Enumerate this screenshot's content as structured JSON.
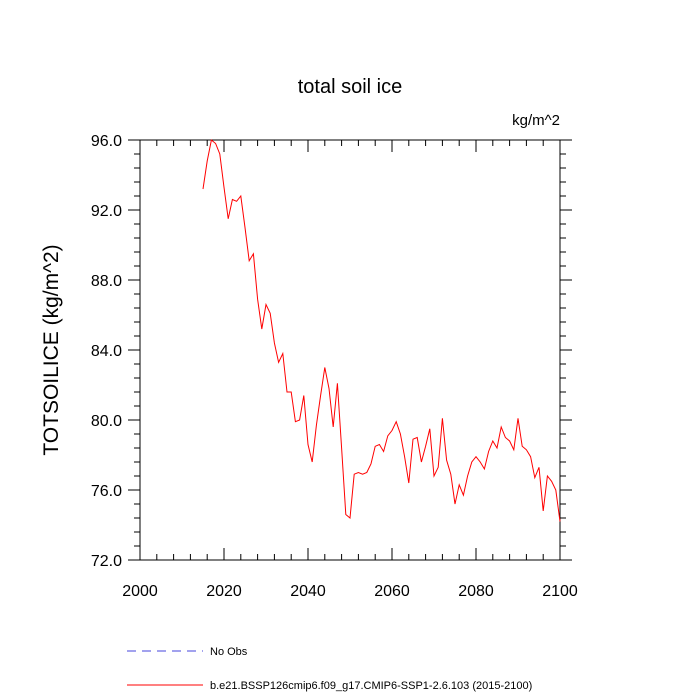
{
  "chart_data": {
    "type": "line",
    "title": "total soil ice",
    "units_label": "kg/m^2",
    "ylabel": "TOTSOILICE  (kg/m^2)",
    "xlabel": "",
    "xlim": [
      2000,
      2100
    ],
    "ylim": [
      72,
      96
    ],
    "x_ticks": [
      2000,
      2020,
      2040,
      2060,
      2080,
      2100
    ],
    "x_tick_labels": [
      "2000",
      "2020",
      "2040",
      "2060",
      "2080",
      "2100"
    ],
    "y_ticks": [
      72,
      76,
      80,
      84,
      88,
      92,
      96
    ],
    "y_tick_labels": [
      "72.0",
      "76.0",
      "80.0",
      "84.0",
      "88.0",
      "92.0",
      "96.0"
    ],
    "series": [
      {
        "name": "b.e21.BSSP126cmip6.f09_g17.CMIP6-SSP1-2.6.103 (2015-2100)",
        "color": "#ff0000",
        "x": [
          2015,
          2016,
          2017,
          2018,
          2019,
          2020,
          2021,
          2022,
          2023,
          2024,
          2025,
          2026,
          2027,
          2028,
          2029,
          2030,
          2031,
          2032,
          2033,
          2034,
          2035,
          2036,
          2037,
          2038,
          2039,
          2040,
          2041,
          2042,
          2043,
          2044,
          2045,
          2046,
          2047,
          2048,
          2049,
          2050,
          2051,
          2052,
          2053,
          2054,
          2055,
          2056,
          2057,
          2058,
          2059,
          2060,
          2061,
          2062,
          2063,
          2064,
          2065,
          2066,
          2067,
          2068,
          2069,
          2070,
          2071,
          2072,
          2073,
          2074,
          2075,
          2076,
          2077,
          2078,
          2079,
          2080,
          2081,
          2082,
          2083,
          2084,
          2085,
          2086,
          2087,
          2088,
          2089,
          2090,
          2091,
          2092,
          2093,
          2094,
          2095,
          2096,
          2097,
          2098,
          2099,
          2100
        ],
        "values": [
          93.2,
          94.8,
          96.0,
          95.8,
          95.2,
          93.3,
          91.5,
          92.6,
          92.5,
          92.8,
          91.0,
          89.1,
          89.5,
          86.9,
          85.2,
          86.6,
          86.1,
          84.4,
          83.3,
          83.8,
          81.6,
          81.6,
          79.9,
          80.0,
          81.4,
          78.6,
          77.6,
          79.7,
          81.4,
          83.0,
          81.8,
          79.6,
          82.1,
          78.4,
          74.6,
          74.4,
          76.9,
          77.0,
          76.9,
          77.0,
          77.5,
          78.5,
          78.6,
          78.2,
          79.1,
          79.4,
          79.9,
          79.2,
          77.9,
          76.4,
          78.9,
          79.0,
          77.6,
          78.5,
          79.5,
          76.8,
          77.3,
          80.1,
          77.7,
          76.9,
          75.2,
          76.3,
          75.7,
          76.8,
          77.6,
          77.9,
          77.6,
          77.2,
          78.2,
          78.8,
          78.4,
          79.6,
          79.0,
          78.8,
          78.3,
          80.1,
          78.5,
          78.3,
          77.9,
          76.7,
          77.3,
          74.8,
          76.8,
          76.5,
          76.0,
          74.2
        ]
      }
    ],
    "legend": [
      {
        "label": "No Obs",
        "color": "#4444dd",
        "style": "dashed"
      },
      {
        "label": "b.e21.BSSP126cmip6.f09_g17.CMIP6-SSP1-2.6.103 (2015-2100)",
        "color": "#ff0000",
        "style": "solid"
      }
    ]
  }
}
